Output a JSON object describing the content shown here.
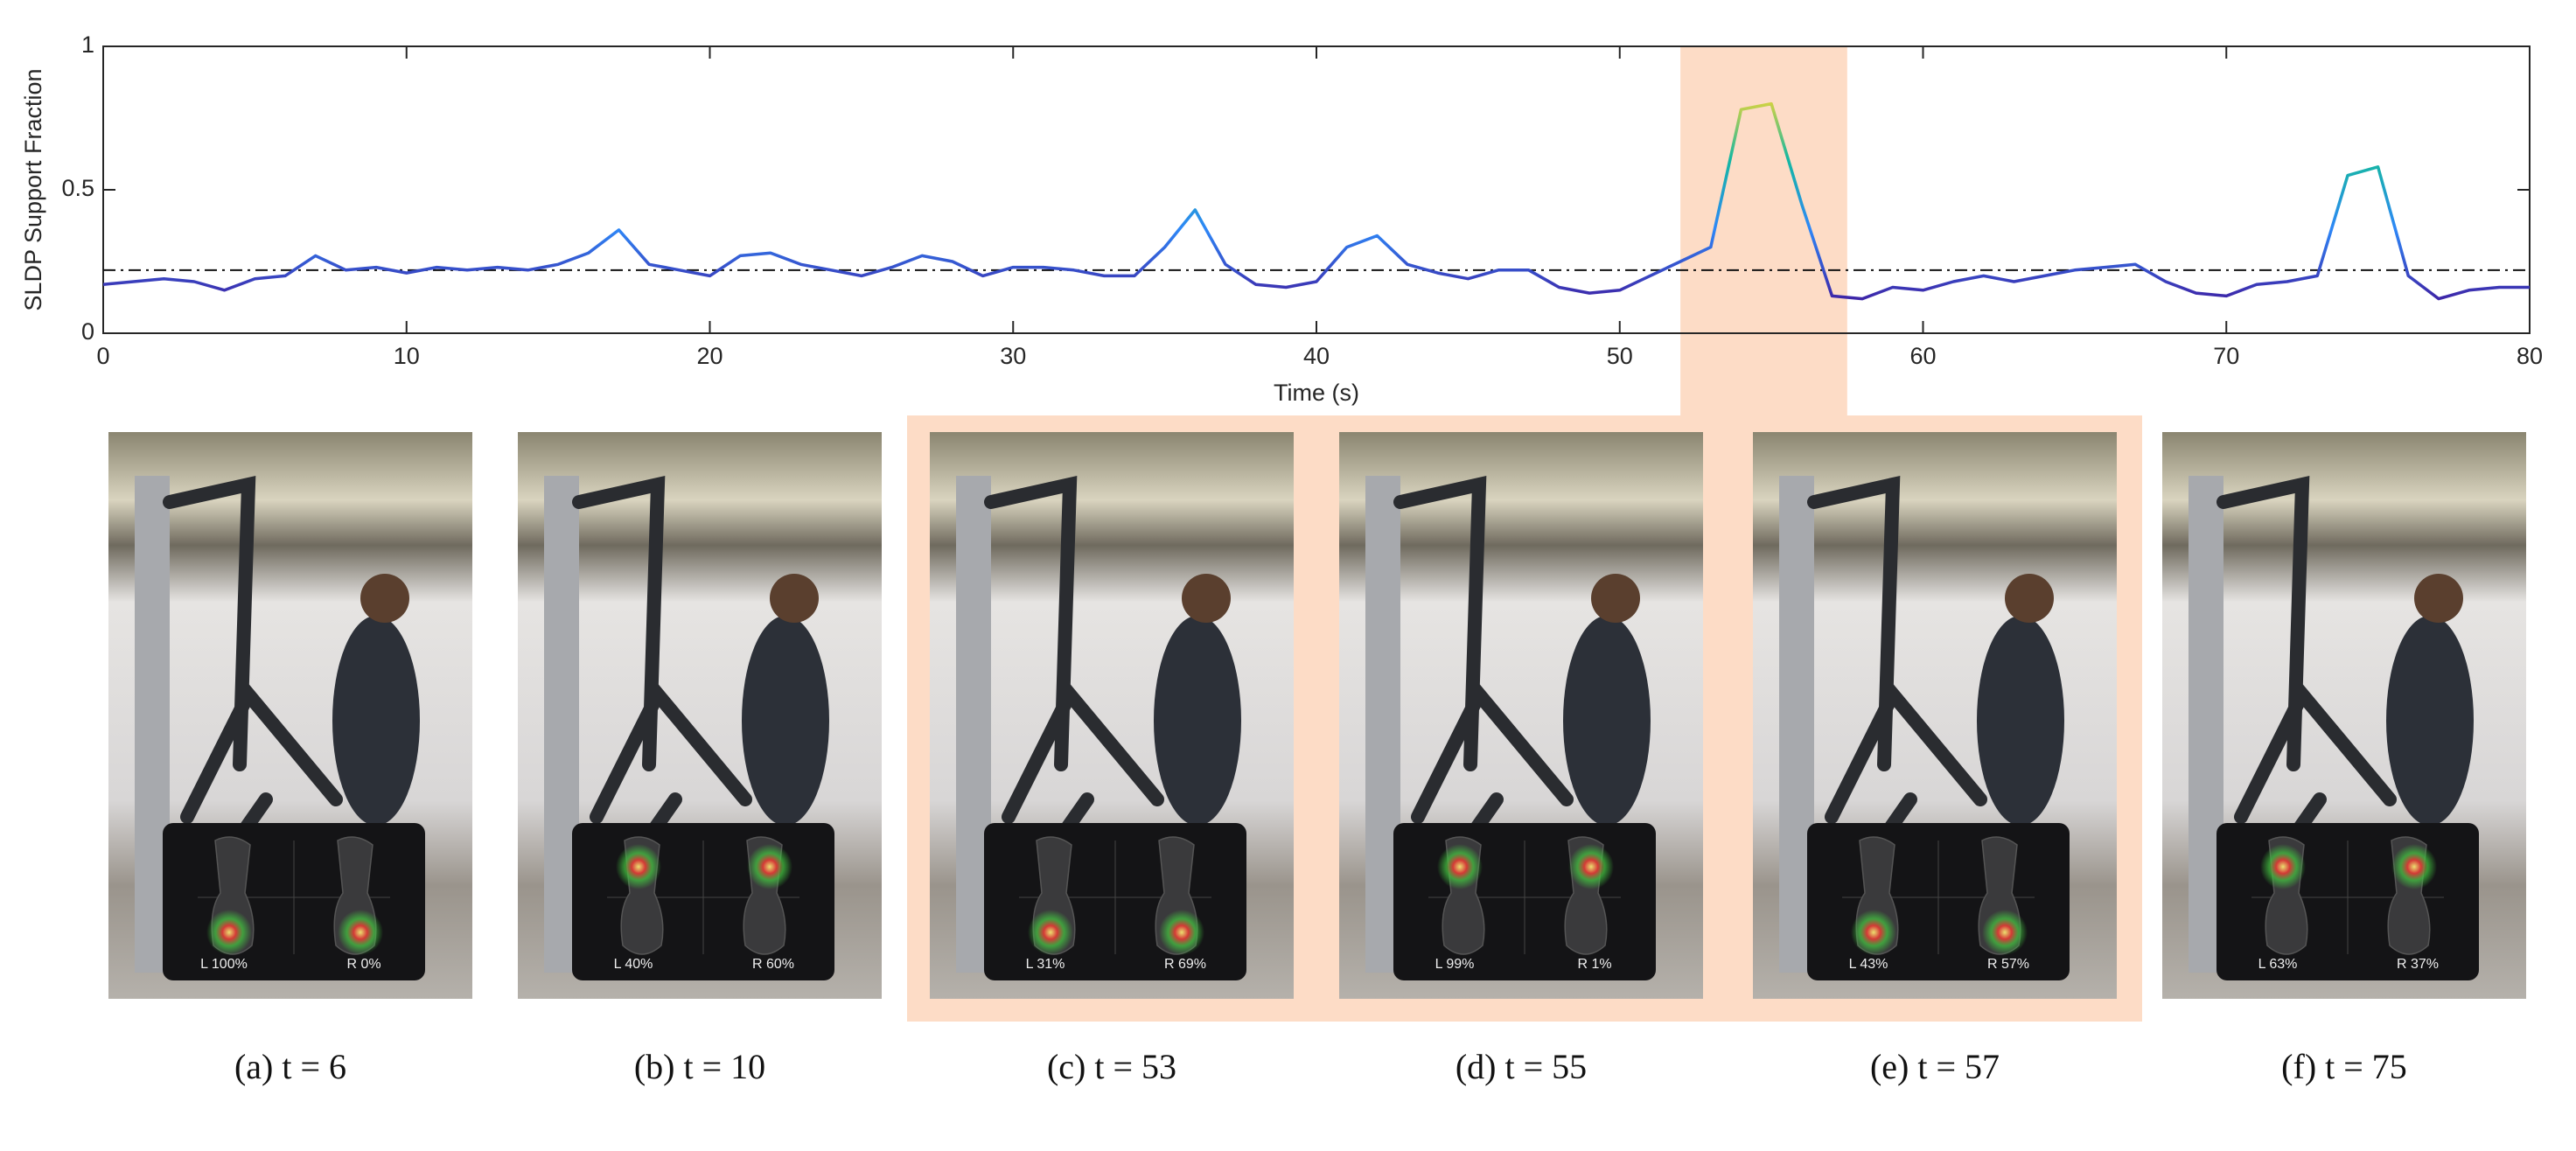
{
  "chart_data": {
    "type": "line",
    "ylabel": "SLDP Support Fraction",
    "xlabel": "Time (s)",
    "x": [
      0,
      1,
      2,
      3,
      4,
      5,
      6,
      7,
      8,
      9,
      10,
      11,
      12,
      13,
      14,
      15,
      16,
      17,
      18,
      19,
      20,
      21,
      22,
      23,
      24,
      25,
      26,
      27,
      28,
      29,
      30,
      31,
      32,
      33,
      34,
      35,
      36,
      37,
      38,
      39,
      40,
      41,
      42,
      43,
      44,
      45,
      46,
      47,
      48,
      49,
      50,
      51,
      52,
      53,
      54,
      55,
      56,
      57,
      58,
      59,
      60,
      61,
      62,
      63,
      64,
      65,
      66,
      67,
      68,
      69,
      70,
      71,
      72,
      73,
      74,
      75,
      76,
      77,
      78,
      79,
      80
    ],
    "values": [
      0.17,
      0.18,
      0.19,
      0.18,
      0.15,
      0.19,
      0.2,
      0.27,
      0.22,
      0.23,
      0.21,
      0.23,
      0.22,
      0.23,
      0.22,
      0.24,
      0.28,
      0.36,
      0.24,
      0.22,
      0.2,
      0.27,
      0.28,
      0.24,
      0.22,
      0.2,
      0.23,
      0.27,
      0.25,
      0.2,
      0.23,
      0.23,
      0.22,
      0.2,
      0.2,
      0.3,
      0.43,
      0.24,
      0.17,
      0.16,
      0.18,
      0.3,
      0.34,
      0.24,
      0.21,
      0.19,
      0.22,
      0.22,
      0.16,
      0.14,
      0.15,
      0.2,
      0.25,
      0.3,
      0.78,
      0.8,
      0.45,
      0.13,
      0.12,
      0.16,
      0.15,
      0.18,
      0.2,
      0.18,
      0.2,
      0.22,
      0.23,
      0.24,
      0.18,
      0.14,
      0.13,
      0.17,
      0.18,
      0.2,
      0.55,
      0.58,
      0.2,
      0.12,
      0.15,
      0.16,
      0.16
    ],
    "colors": [
      "#3d26a8",
      "#2e87f7",
      "#15b8a2",
      "#f9d82e"
    ],
    "threshold": 0.22,
    "highlight": [
      52,
      57.5
    ],
    "highlight_color": "#fddcc6",
    "xlim": [
      0,
      80
    ],
    "xticks": [
      0,
      10,
      20,
      30,
      40,
      50,
      60,
      70,
      80
    ],
    "ylim": [
      0,
      1
    ],
    "yticks": [
      0,
      0.5,
      1
    ]
  },
  "panels": [
    {
      "caption": "(a) t = 6",
      "left": "L 100%",
      "right": "R 0%"
    },
    {
      "caption": "(b) t = 10",
      "left": "L 40%",
      "right": "R 60%"
    },
    {
      "caption": "(c) t = 53",
      "left": "L 31%",
      "right": "R 69%"
    },
    {
      "caption": "(d) t = 55",
      "left": "L 99%",
      "right": "R 1%"
    },
    {
      "caption": "(e) t = 57",
      "left": "L 43%",
      "right": "R 57%"
    },
    {
      "caption": "(f) t = 75",
      "left": "L 63%",
      "right": "R 37%"
    }
  ]
}
